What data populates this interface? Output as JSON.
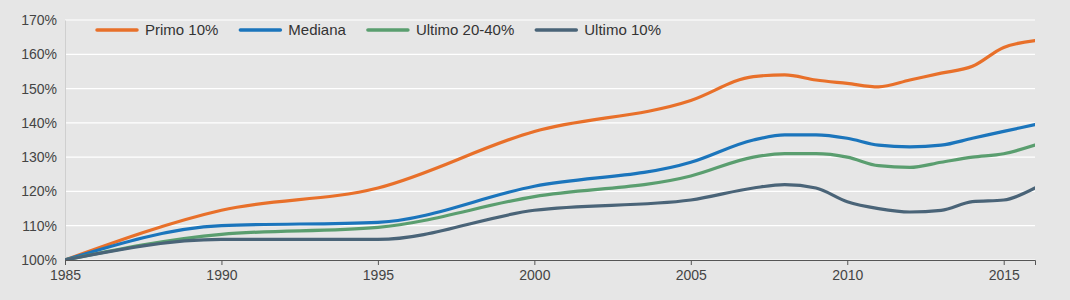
{
  "chart_data": {
    "type": "line",
    "x": [
      1985,
      1990,
      1995,
      2000,
      2005,
      2007,
      2008,
      2009,
      2010,
      2011,
      2012,
      2013,
      2014,
      2015,
      2016
    ],
    "xlim": [
      1985,
      2016
    ],
    "xticks": [
      1985,
      1990,
      1995,
      2000,
      2005,
      2010,
      2015
    ],
    "ylim": [
      100,
      170
    ],
    "yticks": [
      {
        "value": 100,
        "label": "100%"
      },
      {
        "value": 110,
        "label": "110%"
      },
      {
        "value": 120,
        "label": "120%"
      },
      {
        "value": 130,
        "label": "130%"
      },
      {
        "value": 140,
        "label": "140%"
      },
      {
        "value": 150,
        "label": "150%"
      },
      {
        "value": 160,
        "label": "160%"
      },
      {
        "value": 170,
        "label": "170%"
      }
    ],
    "grid": true,
    "legend": "top-left",
    "series": [
      {
        "name": "Primo 10%",
        "color": "#e8702a",
        "values": [
          100,
          114.5,
          121,
          137.5,
          146.5,
          153.5,
          154,
          152.5,
          151.5,
          150.5,
          152.5,
          154.5,
          156.5,
          162,
          164
        ]
      },
      {
        "name": "Mediana",
        "color": "#1b75bc",
        "values": [
          100,
          110,
          111,
          121.5,
          128.5,
          135,
          136.5,
          136.5,
          135.5,
          133.5,
          133,
          133.5,
          135.5,
          137.5,
          139.5
        ]
      },
      {
        "name": "Ultimo 20-40%",
        "color": "#5a9e6f",
        "values": [
          100,
          107.5,
          109.5,
          118.5,
          124.5,
          130,
          131,
          131,
          130,
          127.5,
          127,
          128.5,
          130,
          131,
          133.5
        ]
      },
      {
        "name": "Ultimo 10%",
        "color": "#4a6478",
        "values": [
          100,
          106,
          106,
          114.5,
          117.5,
          121,
          122,
          121,
          117,
          115,
          114,
          114.5,
          117,
          117.5,
          121
        ]
      }
    ]
  }
}
